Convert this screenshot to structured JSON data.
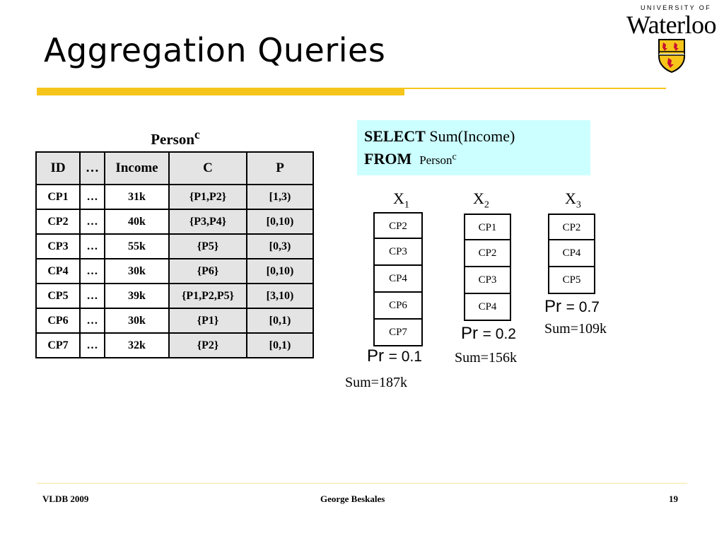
{
  "slide": {
    "title": "Aggregation Queries",
    "logo": {
      "top": "UNIVERSITY OF",
      "name": "Waterloo"
    }
  },
  "table": {
    "caption": "Person",
    "caption_sup": "c",
    "headers": [
      "ID",
      "…",
      "Income",
      "C",
      "P"
    ],
    "rows": [
      [
        "CP1",
        "…",
        "31k",
        "{P1,P2}",
        "[1,3)"
      ],
      [
        "CP2",
        "…",
        "40k",
        "{P3,P4}",
        "[0,10)"
      ],
      [
        "CP3",
        "…",
        "55k",
        "{P5}",
        "[0,3)"
      ],
      [
        "CP4",
        "…",
        "30k",
        "{P6}",
        "[0,10)"
      ],
      [
        "CP5",
        "…",
        "39k",
        "{P1,P2,P5}",
        "[3,10)"
      ],
      [
        "CP6",
        "…",
        "30k",
        "{P1}",
        "[0,1)"
      ],
      [
        "CP7",
        "…",
        "32k",
        "{P2}",
        "[0,1)"
      ]
    ]
  },
  "query": {
    "select_kw": "SELECT",
    "select_expr": "Sum(Income)",
    "from_kw": "FROM",
    "table_name": "Person",
    "table_sup": "c"
  },
  "worlds": [
    {
      "label": "X",
      "sub": "1",
      "items": [
        "CP2",
        "CP3",
        "CP4",
        "CP6",
        "CP7"
      ],
      "pr_label": "Pr",
      "pr_value": "= 0.1",
      "sum": "Sum=187k"
    },
    {
      "label": "X",
      "sub": "2",
      "items": [
        "CP1",
        "CP2",
        "CP3",
        "CP4"
      ],
      "pr_label": "Pr",
      "pr_value": "= 0.2",
      "sum": "Sum=156k"
    },
    {
      "label": "X",
      "sub": "3",
      "items": [
        "CP2",
        "CP4",
        "CP5"
      ],
      "pr_label": "Pr",
      "pr_value": "= 0.7",
      "sum": "Sum=109k"
    }
  ],
  "footer": {
    "left": "VLDB 2009",
    "center": "George Beskales",
    "page": "19"
  },
  "colors": {
    "accent_bar": "#f6c51b",
    "query_bg": "#ccffff",
    "header_bg": "#e4e4e4"
  }
}
